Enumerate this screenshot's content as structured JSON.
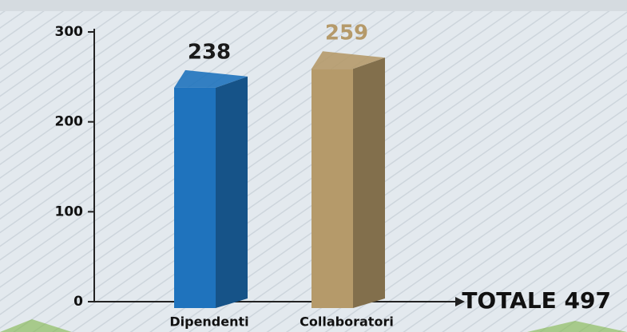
{
  "chart_data": {
    "type": "bar",
    "categories": [
      "Dipendenti",
      "Collaboratori"
    ],
    "values": [
      238,
      259
    ],
    "colors": [
      "#1f73bd",
      "#b59a6a"
    ],
    "label_colors": [
      "#1a1a1a",
      "#b59a6a"
    ],
    "ylim": [
      0,
      300
    ],
    "yticks": [
      0,
      100,
      200,
      300
    ],
    "annotation": "TOTALE 497"
  }
}
